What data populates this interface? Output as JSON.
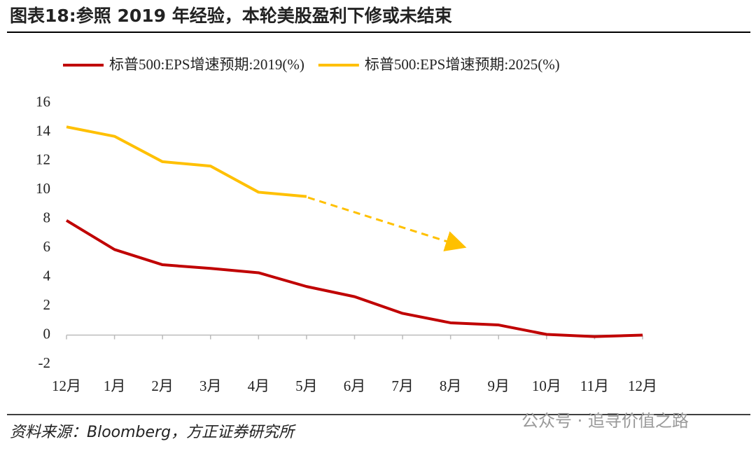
{
  "chart_data": {
    "type": "line",
    "title": "图表18:参照 2019 年经验，本轮美股盈利下修或未结束",
    "source": "资料来源：Bloomberg，方正证券研究所",
    "watermark": "公众号 · 追寻价值之路",
    "categories": [
      "12月",
      "1月",
      "2月",
      "3月",
      "4月",
      "5月",
      "6月",
      "7月",
      "8月",
      "9月",
      "10月",
      "11月",
      "12月"
    ],
    "series": [
      {
        "name": "标普500:EPS增速预期:2019(%)",
        "color": "#c00000",
        "values": [
          7.9,
          5.9,
          4.85,
          4.6,
          4.3,
          3.35,
          2.65,
          1.5,
          0.85,
          0.7,
          0.05,
          -0.1,
          0.0
        ]
      },
      {
        "name": "标普500:EPS增速预期:2025(%)",
        "color": "#ffc000",
        "values": [
          14.35,
          13.7,
          11.95,
          11.65,
          9.85,
          9.55,
          null,
          null,
          null,
          null,
          null,
          null,
          null
        ]
      }
    ],
    "ylim": [
      -2,
      16
    ],
    "yticks": [
      -2,
      0,
      2,
      4,
      6,
      8,
      10,
      12,
      14,
      16
    ],
    "legend": "top"
  }
}
